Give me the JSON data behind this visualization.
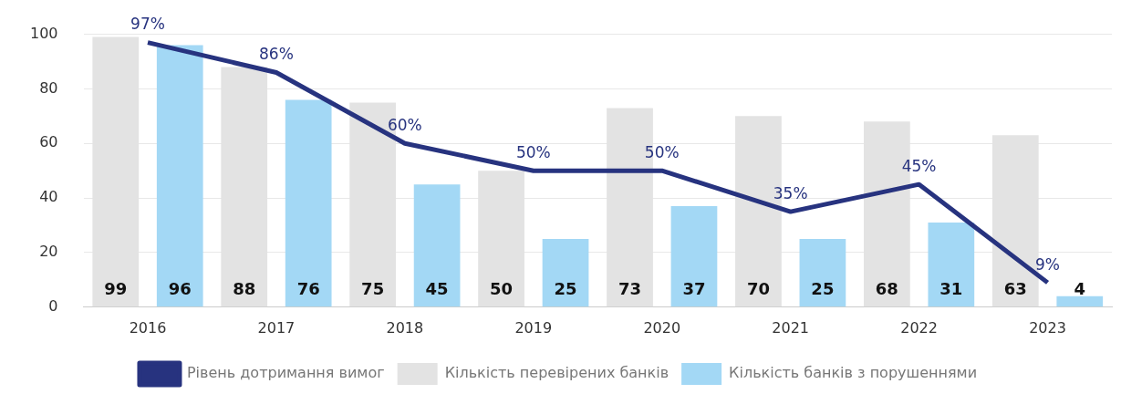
{
  "chart_data": {
    "type": "bar",
    "categories": [
      "2016",
      "2017",
      "2018",
      "2019",
      "2020",
      "2021",
      "2022",
      "2023"
    ],
    "series": [
      {
        "name": "Кількість перевірених банків",
        "color": "#e3e3e3",
        "values": [
          99,
          88,
          75,
          50,
          73,
          70,
          68,
          63
        ],
        "value_labels": [
          "99",
          "88",
          "75",
          "50",
          "73",
          "70",
          "68",
          "63"
        ]
      },
      {
        "name": "Кількість банків з порушеннями",
        "color": "#a3d8f5",
        "values": [
          96,
          76,
          45,
          25,
          37,
          25,
          31,
          4
        ],
        "value_labels": [
          "96",
          "76",
          "45",
          "25",
          "37",
          "25",
          "31",
          "4"
        ]
      },
      {
        "name": "Рівень дотримання вимог",
        "type": "line",
        "color": "#27337f",
        "values": [
          97,
          86,
          60,
          50,
          50,
          35,
          45,
          9
        ],
        "value_labels": [
          "97%",
          "86%",
          "60%",
          "50%",
          "50%",
          "35%",
          "45%",
          "9%"
        ]
      }
    ],
    "ylim": [
      0,
      100
    ],
    "yticks": [
      0,
      20,
      40,
      60,
      80,
      100
    ],
    "grid": "y",
    "legend": "bottom",
    "marker": "none"
  }
}
